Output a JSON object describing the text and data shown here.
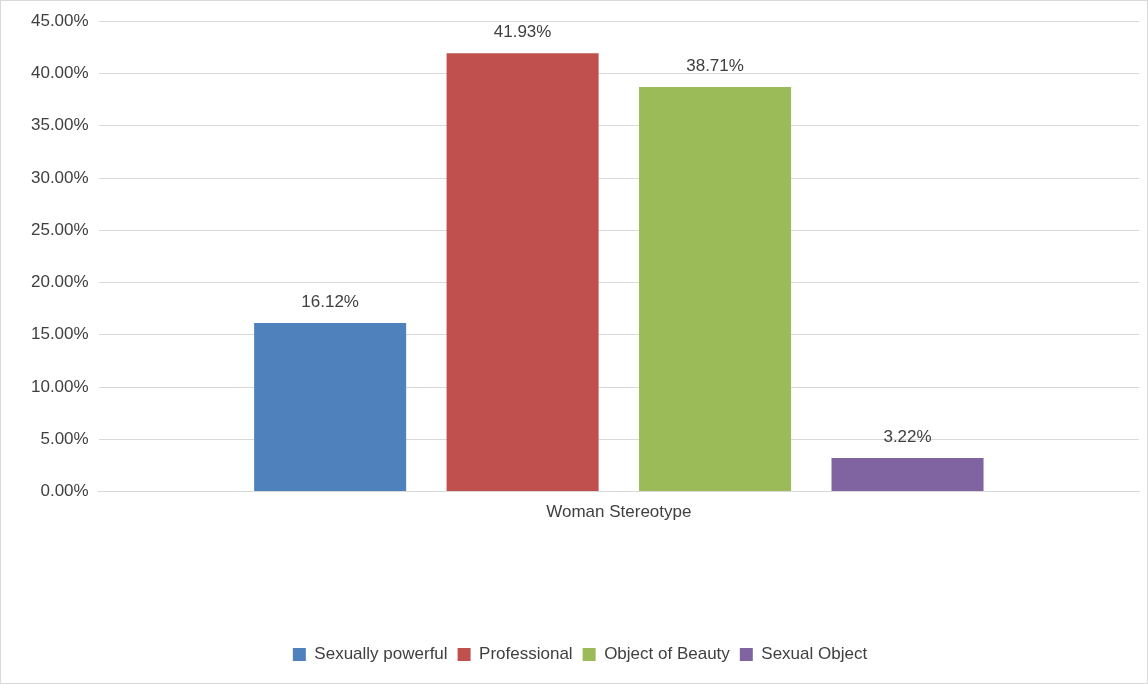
{
  "chart_data": {
    "type": "bar",
    "categories": [
      "Woman Stereotype"
    ],
    "series": [
      {
        "name": "Sexually powerful",
        "color": "#4f81bd",
        "values": [
          16.12
        ],
        "value_labels": [
          "16.12%"
        ]
      },
      {
        "name": "Professional",
        "color": "#c0504d",
        "values": [
          41.93
        ],
        "value_labels": [
          "41.93%"
        ]
      },
      {
        "name": "Object of Beauty",
        "color": "#9bbb59",
        "values": [
          38.71
        ],
        "value_labels": [
          "38.71%"
        ]
      },
      {
        "name": "Sexual Object",
        "color": "#8064a2",
        "values": [
          3.22
        ],
        "value_labels": [
          "3.22%"
        ]
      }
    ],
    "ylim": [
      0,
      45
    ],
    "yticks": [
      {
        "value": 0,
        "label": "0.00%"
      },
      {
        "value": 5,
        "label": "5.00%"
      },
      {
        "value": 10,
        "label": "10.00%"
      },
      {
        "value": 15,
        "label": "15.00%"
      },
      {
        "value": 20,
        "label": "20.00%"
      },
      {
        "value": 25,
        "label": "25.00%"
      },
      {
        "value": 30,
        "label": "30.00%"
      },
      {
        "value": 35,
        "label": "35.00%"
      },
      {
        "value": 40,
        "label": "40.00%"
      },
      {
        "value": 45,
        "label": "45.00%"
      }
    ],
    "grid": "y",
    "legend": "bottom"
  }
}
